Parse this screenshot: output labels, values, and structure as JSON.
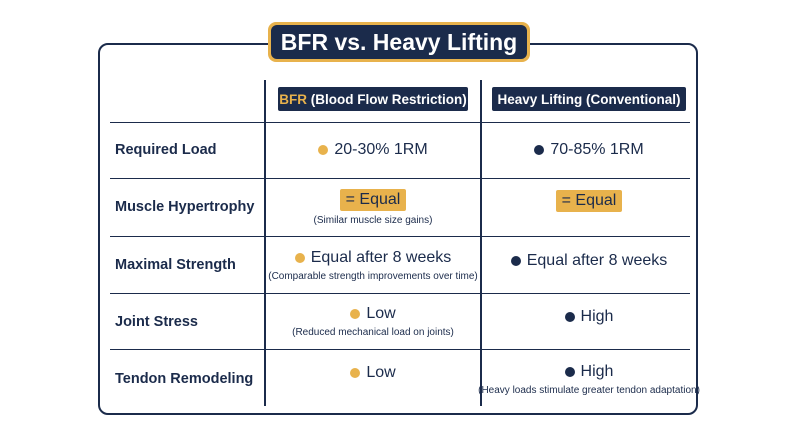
{
  "title": "BFR vs. Heavy Lifting",
  "columns": {
    "bfr": {
      "accent": "BFR",
      "rest": " (Blood Flow Restriction)"
    },
    "heavy": {
      "label": "Heavy Lifting (Conventional)"
    }
  },
  "rows": [
    {
      "label": "Required Load",
      "bfr": {
        "value": "20-30% 1RM",
        "note": ""
      },
      "heavy": {
        "value": "70-85% 1RM",
        "note": ""
      }
    },
    {
      "label": "Muscle Hypertrophy",
      "bfr": {
        "value": "= Equal",
        "note": "(Similar muscle size gains)"
      },
      "heavy": {
        "value": "= Equal",
        "note": ""
      }
    },
    {
      "label": "Maximal Strength",
      "bfr": {
        "value": "Equal after 8 weeks",
        "note": "(Comparable strength improvements over time)"
      },
      "heavy": {
        "value": "Equal after 8 weeks",
        "note": ""
      }
    },
    {
      "label": "Joint Stress",
      "bfr": {
        "value": "Low",
        "note": "(Reduced mechanical load on joints)"
      },
      "heavy": {
        "value": "High",
        "note": ""
      }
    },
    {
      "label": "Tendon Remodeling",
      "bfr": {
        "value": "Low",
        "note": ""
      },
      "heavy": {
        "value": "High",
        "note": "(Heavy loads stimulate greater tendon adaptation)"
      }
    }
  ],
  "colors": {
    "navy": "#1b2b4b",
    "gold": "#e8b24c"
  }
}
